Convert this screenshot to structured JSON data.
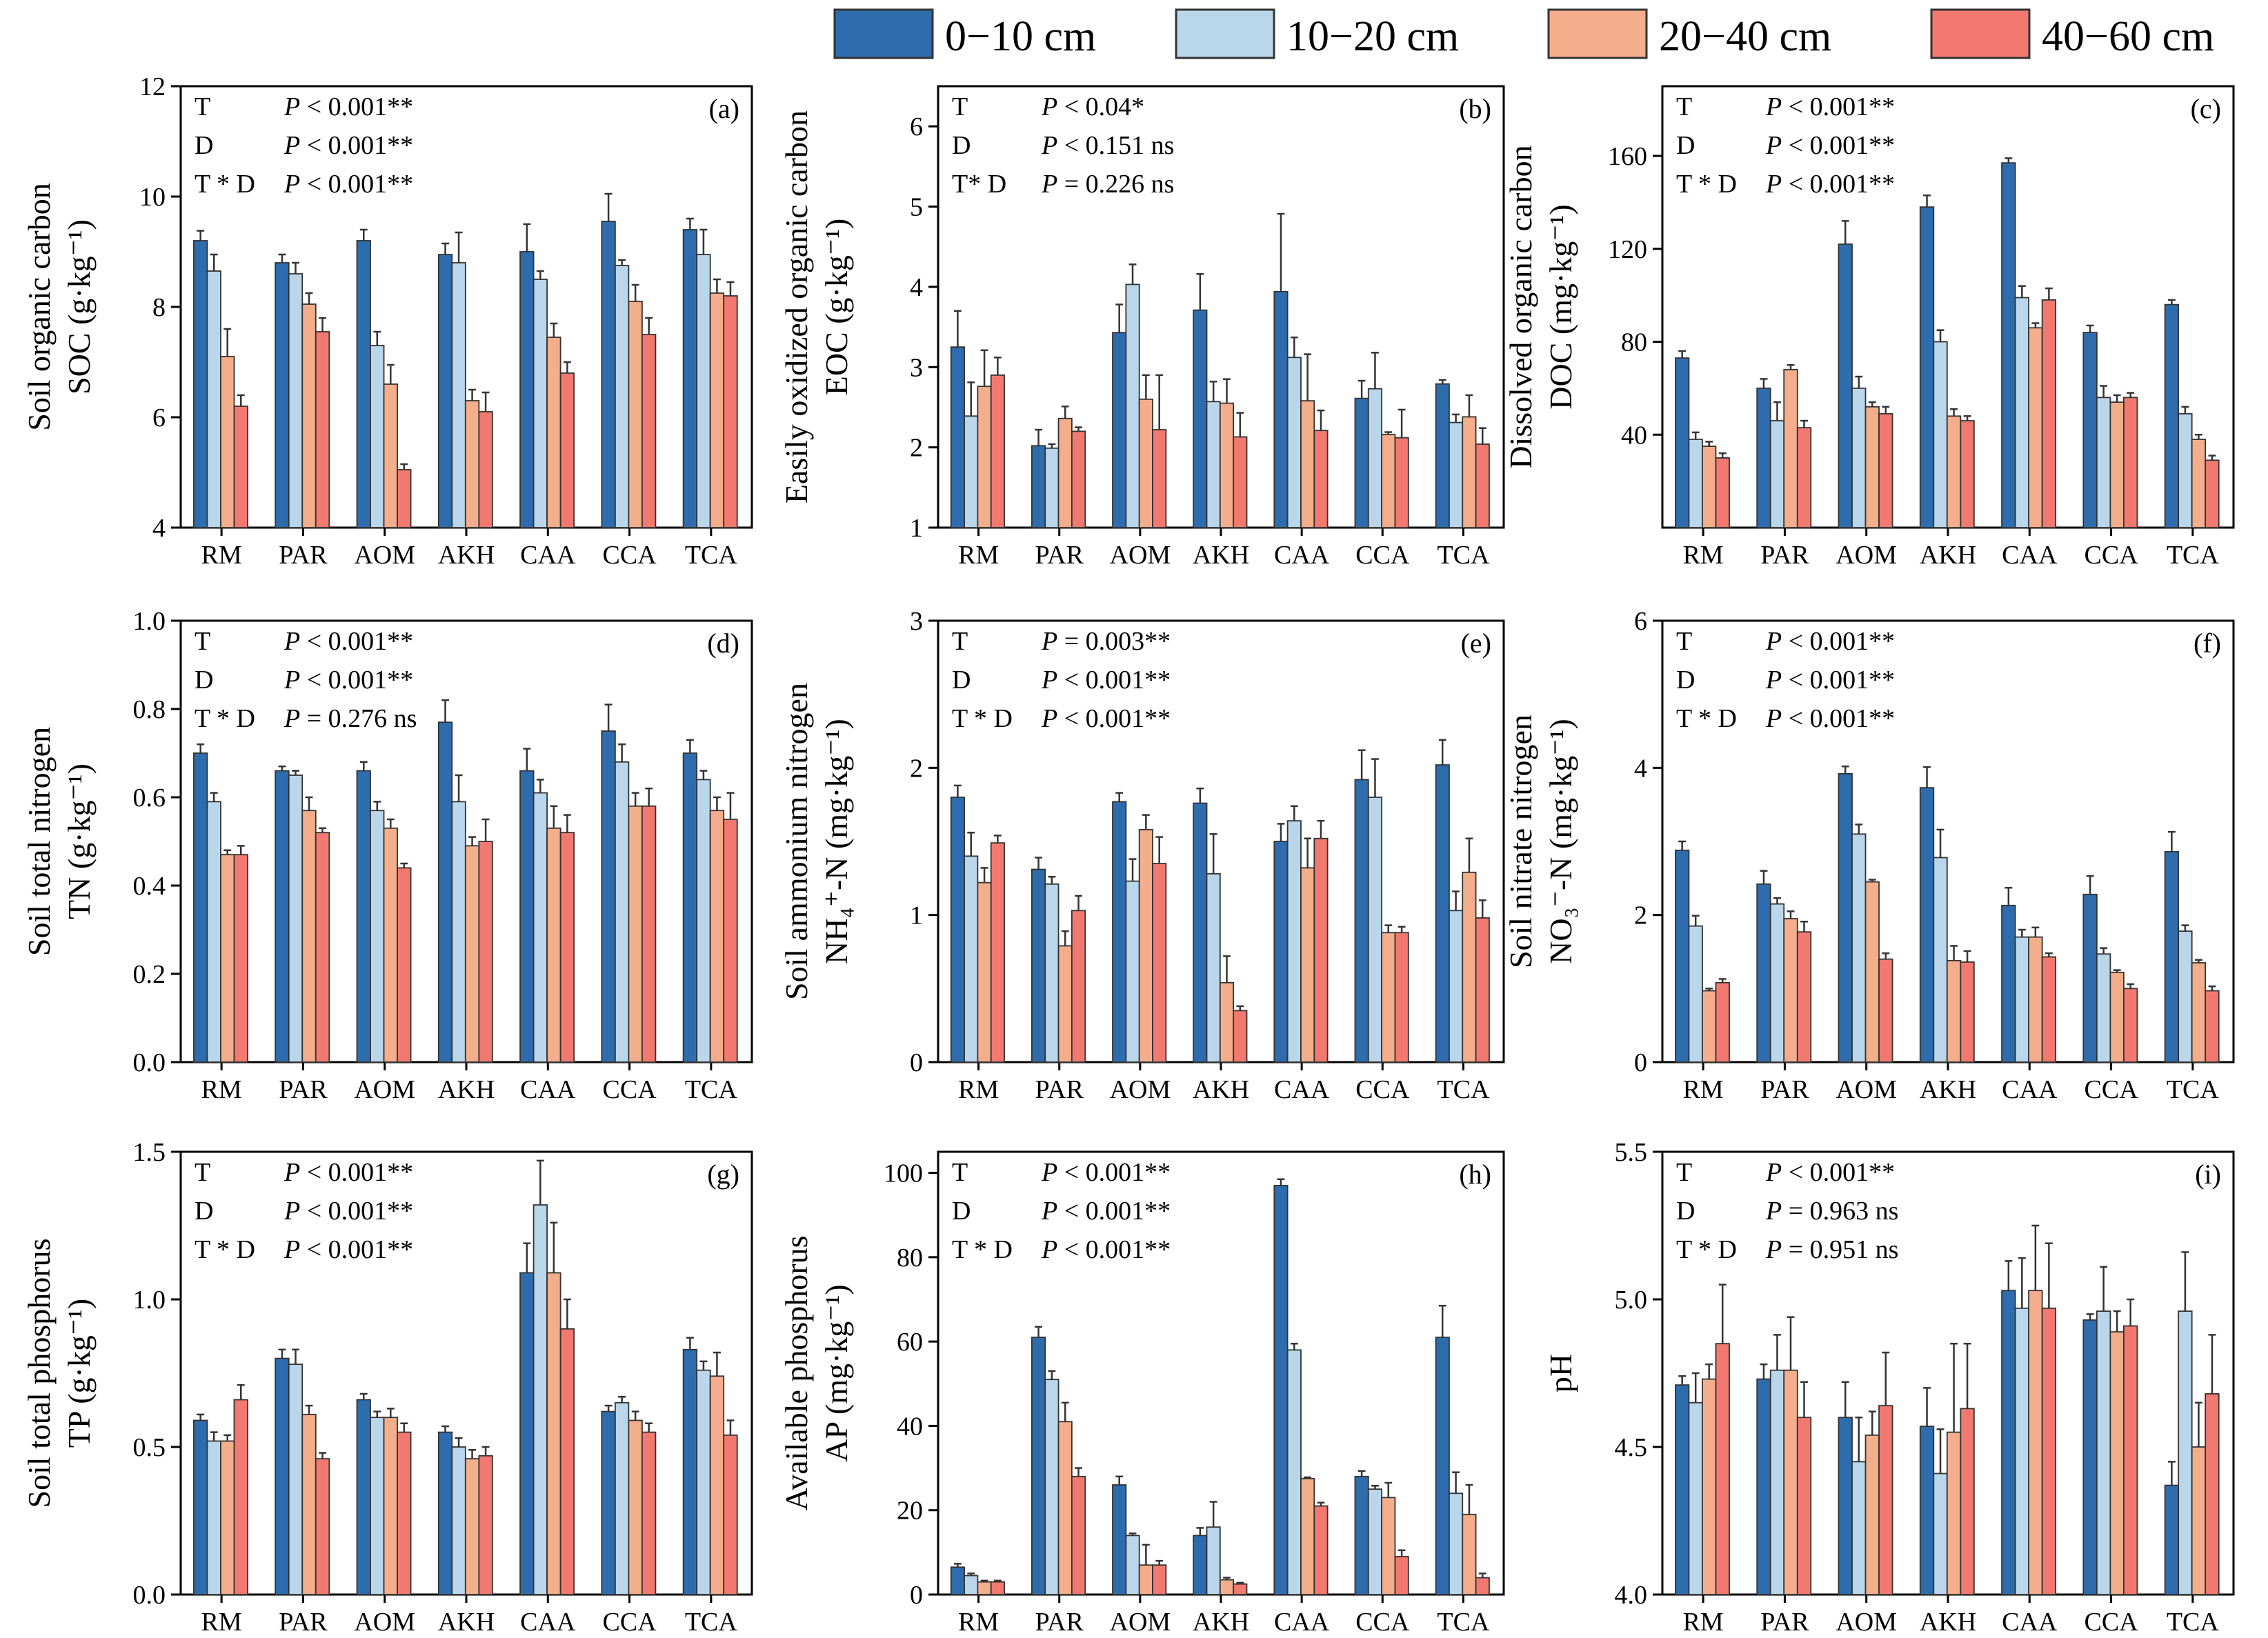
{
  "colors": {
    "series": [
      "#2e6cae",
      "#bad6ea",
      "#f4ae8c",
      "#f2796f"
    ],
    "edge": "#333333"
  },
  "legend": [
    "0−10 cm",
    "10−20 cm",
    "20−40 cm",
    "40−60 cm"
  ],
  "chart_data": [
    {
      "id": "a",
      "type": "bar",
      "panel_label": "(a)",
      "ylabel": [
        "Soil organic carbon",
        "SOC (g·kg⁻¹)"
      ],
      "ylim": [
        4,
        12
      ],
      "yticks": [
        "4",
        "6",
        "8",
        "10",
        "12"
      ],
      "categories": [
        "RM",
        "PAR",
        "AOM",
        "AKH",
        "CAA",
        "CCA",
        "TCA"
      ],
      "annotations": [
        [
          "T",
          "P < 0.001**"
        ],
        [
          "D",
          "P < 0.001**"
        ],
        [
          "T * D",
          "P < 0.001**"
        ]
      ],
      "series": [
        {
          "name": "0−10 cm",
          "values": [
            9.2,
            8.8,
            9.2,
            8.95,
            9.0,
            9.55,
            9.4
          ],
          "errors": [
            0.18,
            0.15,
            0.2,
            0.2,
            0.5,
            0.5,
            0.2
          ]
        },
        {
          "name": "10−20 cm",
          "values": [
            8.65,
            8.6,
            7.3,
            8.8,
            8.5,
            8.75,
            8.95
          ],
          "errors": [
            0.3,
            0.2,
            0.25,
            0.55,
            0.15,
            0.1,
            0.45
          ]
        },
        {
          "name": "20−40 cm",
          "values": [
            7.1,
            8.05,
            6.6,
            6.3,
            7.45,
            8.1,
            8.25
          ],
          "errors": [
            0.5,
            0.2,
            0.35,
            0.2,
            0.25,
            0.3,
            0.25
          ]
        },
        {
          "name": "40−60 cm",
          "values": [
            6.2,
            7.55,
            5.05,
            6.1,
            6.8,
            7.5,
            8.2
          ],
          "errors": [
            0.2,
            0.25,
            0.1,
            0.35,
            0.2,
            0.3,
            0.25
          ]
        }
      ]
    },
    {
      "id": "b",
      "type": "bar",
      "panel_label": "(b)",
      "ylabel": [
        "Easily oxidized organic carbon",
        "EOC (g·kg⁻¹)"
      ],
      "ylim": [
        1,
        6.5
      ],
      "yticks": [
        "1",
        "2",
        "3",
        "4",
        "5",
        "6"
      ],
      "categories": [
        "RM",
        "PAR",
        "AOM",
        "AKH",
        "CAA",
        "CCA",
        "TCA"
      ],
      "annotations": [
        [
          "T",
          "P < 0.04*"
        ],
        [
          "D",
          "P < 0.151 ns"
        ],
        [
          "T* D",
          "P = 0.226 ns"
        ]
      ],
      "series": [
        {
          "name": "0−10 cm",
          "values": [
            3.25,
            2.02,
            3.43,
            3.71,
            3.94,
            2.61,
            2.79
          ],
          "errors": [
            0.45,
            0.2,
            0.35,
            0.45,
            0.97,
            0.22,
            0.05
          ]
        },
        {
          "name": "10−20 cm",
          "values": [
            2.39,
            1.99,
            4.03,
            2.57,
            3.12,
            2.73,
            2.31
          ],
          "errors": [
            0.42,
            0.05,
            0.25,
            0.25,
            0.25,
            0.45,
            0.1
          ]
        },
        {
          "name": "20−40 cm",
          "values": [
            2.76,
            2.36,
            2.6,
            2.55,
            2.58,
            2.16,
            2.38
          ],
          "errors": [
            0.45,
            0.15,
            0.3,
            0.3,
            0.58,
            0.03,
            0.27
          ]
        },
        {
          "name": "40−60 cm",
          "values": [
            2.9,
            2.2,
            2.22,
            2.13,
            2.21,
            2.12,
            2.04
          ],
          "errors": [
            0.22,
            0.05,
            0.68,
            0.3,
            0.25,
            0.35,
            0.2
          ]
        }
      ]
    },
    {
      "id": "c",
      "type": "bar",
      "panel_label": "(c)",
      "ylabel": [
        "Dissolved organic carbon",
        "DOC (mg·kg⁻¹)"
      ],
      "ylim": [
        0,
        190
      ],
      "yticks": [
        "40",
        "80",
        "120",
        "160"
      ],
      "ytick_values": [
        40,
        80,
        120,
        160
      ],
      "categories": [
        "RM",
        "PAR",
        "AOM",
        "AKH",
        "CAA",
        "CCA",
        "TCA"
      ],
      "annotations": [
        [
          "T",
          "P < 0.001**"
        ],
        [
          "D",
          "P < 0.001**"
        ],
        [
          "T * D",
          "P < 0.001**"
        ]
      ],
      "series": [
        {
          "name": "0−10 cm",
          "values": [
            73,
            60,
            122,
            138,
            157,
            84,
            96
          ],
          "errors": [
            3,
            4,
            10,
            5,
            2,
            3,
            2
          ]
        },
        {
          "name": "10−20 cm",
          "values": [
            38,
            46,
            60,
            80,
            99,
            56,
            49
          ],
          "errors": [
            3,
            8,
            5,
            5,
            5,
            5,
            3
          ]
        },
        {
          "name": "20−40 cm",
          "values": [
            35,
            68,
            52,
            48,
            86,
            54,
            38
          ],
          "errors": [
            2,
            2,
            2,
            3,
            2,
            3,
            2
          ]
        },
        {
          "name": "40−60 cm",
          "values": [
            30,
            43,
            49,
            46,
            98,
            56,
            29
          ],
          "errors": [
            2,
            3,
            3,
            2,
            5,
            2,
            2
          ]
        }
      ]
    },
    {
      "id": "d",
      "type": "bar",
      "panel_label": "(d)",
      "ylabel": [
        "Soil total nitrogen",
        "TN (g·kg⁻¹)"
      ],
      "ylim": [
        0,
        1.0
      ],
      "yticks": [
        "0.0",
        "0.2",
        "0.4",
        "0.6",
        "0.8",
        "1.0"
      ],
      "categories": [
        "RM",
        "PAR",
        "AOM",
        "AKH",
        "CAA",
        "CCA",
        "TCA"
      ],
      "annotations": [
        [
          "T",
          "P < 0.001**"
        ],
        [
          "D",
          "P < 0.001**"
        ],
        [
          "T * D",
          "P = 0.276 ns"
        ]
      ],
      "series": [
        {
          "name": "0−10 cm",
          "values": [
            0.7,
            0.66,
            0.66,
            0.77,
            0.66,
            0.75,
            0.7
          ],
          "errors": [
            0.02,
            0.01,
            0.02,
            0.05,
            0.05,
            0.06,
            0.03
          ]
        },
        {
          "name": "10−20 cm",
          "values": [
            0.59,
            0.65,
            0.57,
            0.59,
            0.61,
            0.68,
            0.64
          ],
          "errors": [
            0.02,
            0.01,
            0.02,
            0.06,
            0.03,
            0.04,
            0.02
          ]
        },
        {
          "name": "20−40 cm",
          "values": [
            0.47,
            0.57,
            0.53,
            0.49,
            0.53,
            0.58,
            0.57
          ],
          "errors": [
            0.01,
            0.03,
            0.02,
            0.02,
            0.05,
            0.03,
            0.03
          ]
        },
        {
          "name": "40−60 cm",
          "values": [
            0.47,
            0.52,
            0.44,
            0.5,
            0.52,
            0.58,
            0.55
          ],
          "errors": [
            0.02,
            0.01,
            0.01,
            0.05,
            0.04,
            0.04,
            0.06
          ]
        }
      ]
    },
    {
      "id": "e",
      "type": "bar",
      "panel_label": "(e)",
      "ylabel": [
        "Soil ammonium nitrogen",
        "NH₄⁺-N (mg·kg⁻¹)"
      ],
      "ylim": [
        0,
        3
      ],
      "yticks": [
        "0",
        "1",
        "2",
        "3"
      ],
      "categories": [
        "RM",
        "PAR",
        "AOM",
        "AKH",
        "CAA",
        "CCA",
        "TCA"
      ],
      "annotations": [
        [
          "T",
          "P = 0.003**"
        ],
        [
          "D",
          "P < 0.001**"
        ],
        [
          "T * D",
          "P < 0.001**"
        ]
      ],
      "series": [
        {
          "name": "0−10 cm",
          "values": [
            1.8,
            1.31,
            1.77,
            1.76,
            1.5,
            1.92,
            2.02
          ],
          "errors": [
            0.08,
            0.08,
            0.06,
            0.1,
            0.12,
            0.2,
            0.17
          ]
        },
        {
          "name": "10−20 cm",
          "values": [
            1.4,
            1.21,
            1.23,
            1.28,
            1.64,
            1.8,
            1.03
          ],
          "errors": [
            0.16,
            0.05,
            0.15,
            0.27,
            0.1,
            0.26,
            0.13
          ]
        },
        {
          "name": "20−40 cm",
          "values": [
            1.22,
            0.79,
            1.58,
            0.54,
            1.32,
            0.88,
            1.29
          ],
          "errors": [
            0.1,
            0.1,
            0.1,
            0.18,
            0.2,
            0.05,
            0.23
          ]
        },
        {
          "name": "40−60 cm",
          "values": [
            1.49,
            1.03,
            1.35,
            0.35,
            1.52,
            0.88,
            0.98
          ],
          "errors": [
            0.05,
            0.1,
            0.18,
            0.03,
            0.12,
            0.04,
            0.12
          ]
        }
      ]
    },
    {
      "id": "f",
      "type": "bar",
      "panel_label": "(f)",
      "ylabel": [
        "Soil nitrate nitrogen",
        "NO₃⁻-N (mg·kg⁻¹)"
      ],
      "ylim": [
        0,
        6
      ],
      "yticks": [
        "0",
        "2",
        "4",
        "6"
      ],
      "categories": [
        "RM",
        "PAR",
        "AOM",
        "AKH",
        "CAA",
        "CCA",
        "TCA"
      ],
      "annotations": [
        [
          "T",
          "P < 0.001**"
        ],
        [
          "D",
          "P < 0.001**"
        ],
        [
          "T * D",
          "P < 0.001**"
        ]
      ],
      "series": [
        {
          "name": "0−10 cm",
          "values": [
            2.88,
            2.42,
            3.92,
            3.73,
            2.13,
            2.28,
            2.86
          ],
          "errors": [
            0.12,
            0.18,
            0.1,
            0.28,
            0.24,
            0.25,
            0.27
          ]
        },
        {
          "name": "10−20 cm",
          "values": [
            1.85,
            2.15,
            3.1,
            2.78,
            1.7,
            1.47,
            1.78
          ],
          "errors": [
            0.14,
            0.08,
            0.13,
            0.38,
            0.1,
            0.08,
            0.08
          ]
        },
        {
          "name": "20−40 cm",
          "values": [
            0.97,
            1.95,
            2.45,
            1.38,
            1.7,
            1.22,
            1.35
          ],
          "errors": [
            0.03,
            0.1,
            0.03,
            0.2,
            0.13,
            0.03,
            0.04
          ]
        },
        {
          "name": "40−60 cm",
          "values": [
            1.08,
            1.77,
            1.4,
            1.36,
            1.43,
            1.0,
            0.97
          ],
          "errors": [
            0.05,
            0.14,
            0.08,
            0.15,
            0.05,
            0.06,
            0.06
          ]
        }
      ]
    },
    {
      "id": "g",
      "type": "bar",
      "panel_label": "(g)",
      "ylabel": [
        "Soil total phosphorus",
        "TP (g·kg⁻¹)"
      ],
      "ylim": [
        0,
        1.5
      ],
      "yticks": [
        "0.0",
        "0.5",
        "1.0",
        "1.5"
      ],
      "categories": [
        "RM",
        "PAR",
        "AOM",
        "AKH",
        "CAA",
        "CCA",
        "TCA"
      ],
      "annotations": [
        [
          "T",
          "P < 0.001**"
        ],
        [
          "D",
          "P < 0.001**"
        ],
        [
          "T * D",
          "P < 0.001**"
        ]
      ],
      "series": [
        {
          "name": "0−10 cm",
          "values": [
            0.59,
            0.8,
            0.66,
            0.55,
            1.09,
            0.62,
            0.83
          ],
          "errors": [
            0.02,
            0.03,
            0.02,
            0.02,
            0.1,
            0.02,
            0.04
          ]
        },
        {
          "name": "10−20 cm",
          "values": [
            0.52,
            0.78,
            0.6,
            0.5,
            1.32,
            0.65,
            0.76
          ],
          "errors": [
            0.03,
            0.05,
            0.02,
            0.03,
            0.15,
            0.02,
            0.03
          ]
        },
        {
          "name": "20−40 cm",
          "values": [
            0.52,
            0.61,
            0.6,
            0.46,
            1.09,
            0.59,
            0.74
          ],
          "errors": [
            0.02,
            0.03,
            0.03,
            0.03,
            0.17,
            0.03,
            0.08
          ]
        },
        {
          "name": "40−60 cm",
          "values": [
            0.66,
            0.46,
            0.55,
            0.47,
            0.9,
            0.55,
            0.54
          ],
          "errors": [
            0.05,
            0.02,
            0.03,
            0.03,
            0.1,
            0.03,
            0.05
          ]
        }
      ]
    },
    {
      "id": "h",
      "type": "bar",
      "panel_label": "(h)",
      "ylabel": [
        "Available phosphorus",
        "AP (mg·kg⁻¹)"
      ],
      "ylim": [
        0,
        105
      ],
      "yticks": [
        "0",
        "20",
        "40",
        "60",
        "80",
        "100"
      ],
      "ytick_values": [
        0,
        20,
        40,
        60,
        80,
        100
      ],
      "categories": [
        "RM",
        "PAR",
        "AOM",
        "AKH",
        "CAA",
        "CCA",
        "TCA"
      ],
      "annotations": [
        [
          "T",
          "P < 0.001**"
        ],
        [
          "D",
          "P < 0.001**"
        ],
        [
          "T * D",
          "P < 0.001**"
        ]
      ],
      "series": [
        {
          "name": "0−10 cm",
          "values": [
            6.5,
            61,
            26,
            14,
            97,
            28,
            61
          ],
          "errors": [
            0.8,
            2.5,
            2,
            1.8,
            1.5,
            1.3,
            7.5
          ]
        },
        {
          "name": "10−20 cm",
          "values": [
            4.5,
            51,
            14,
            16,
            58,
            25,
            24
          ],
          "errors": [
            0.5,
            2,
            0.5,
            6,
            1.5,
            0.8,
            5
          ]
        },
        {
          "name": "20−40 cm",
          "values": [
            3,
            41,
            7,
            3.5,
            27.5,
            23,
            19
          ],
          "errors": [
            0.3,
            4.5,
            4.8,
            0.5,
            0.3,
            3.5,
            7
          ]
        },
        {
          "name": "40−60 cm",
          "values": [
            3,
            28,
            7,
            2.5,
            21,
            9,
            4
          ],
          "errors": [
            0.3,
            2,
            1,
            0.3,
            0.8,
            1.5,
            1
          ]
        }
      ]
    },
    {
      "id": "i",
      "type": "bar",
      "panel_label": "(i)",
      "ylabel": [
        "pH"
      ],
      "ylim": [
        4.0,
        5.5
      ],
      "yticks": [
        "4.0",
        "4.5",
        "5.0",
        "5.5"
      ],
      "categories": [
        "RM",
        "PAR",
        "AOM",
        "AKH",
        "CAA",
        "CCA",
        "TCA"
      ],
      "annotations": [
        [
          "T",
          "P < 0.001**"
        ],
        [
          "D",
          "P = 0.963 ns"
        ],
        [
          "T * D",
          "P = 0.951 ns"
        ]
      ],
      "series": [
        {
          "name": "0−10 cm",
          "values": [
            4.71,
            4.73,
            4.6,
            4.57,
            5.03,
            4.93,
            4.37
          ],
          "errors": [
            0.03,
            0.05,
            0.12,
            0.13,
            0.1,
            0.02,
            0.08
          ]
        },
        {
          "name": "10−20 cm",
          "values": [
            4.65,
            4.76,
            4.45,
            4.41,
            4.97,
            4.96,
            4.96
          ],
          "errors": [
            0.1,
            0.12,
            0.15,
            0.15,
            0.17,
            0.15,
            0.2
          ]
        },
        {
          "name": "20−40 cm",
          "values": [
            4.73,
            4.76,
            4.54,
            4.55,
            5.03,
            4.89,
            4.5
          ],
          "errors": [
            0.05,
            0.18,
            0.08,
            0.3,
            0.22,
            0.07,
            0.15
          ]
        },
        {
          "name": "40−60 cm",
          "values": [
            4.85,
            4.6,
            4.64,
            4.63,
            4.97,
            4.91,
            4.68
          ],
          "errors": [
            0.2,
            0.12,
            0.18,
            0.22,
            0.22,
            0.09,
            0.2
          ]
        }
      ]
    }
  ]
}
